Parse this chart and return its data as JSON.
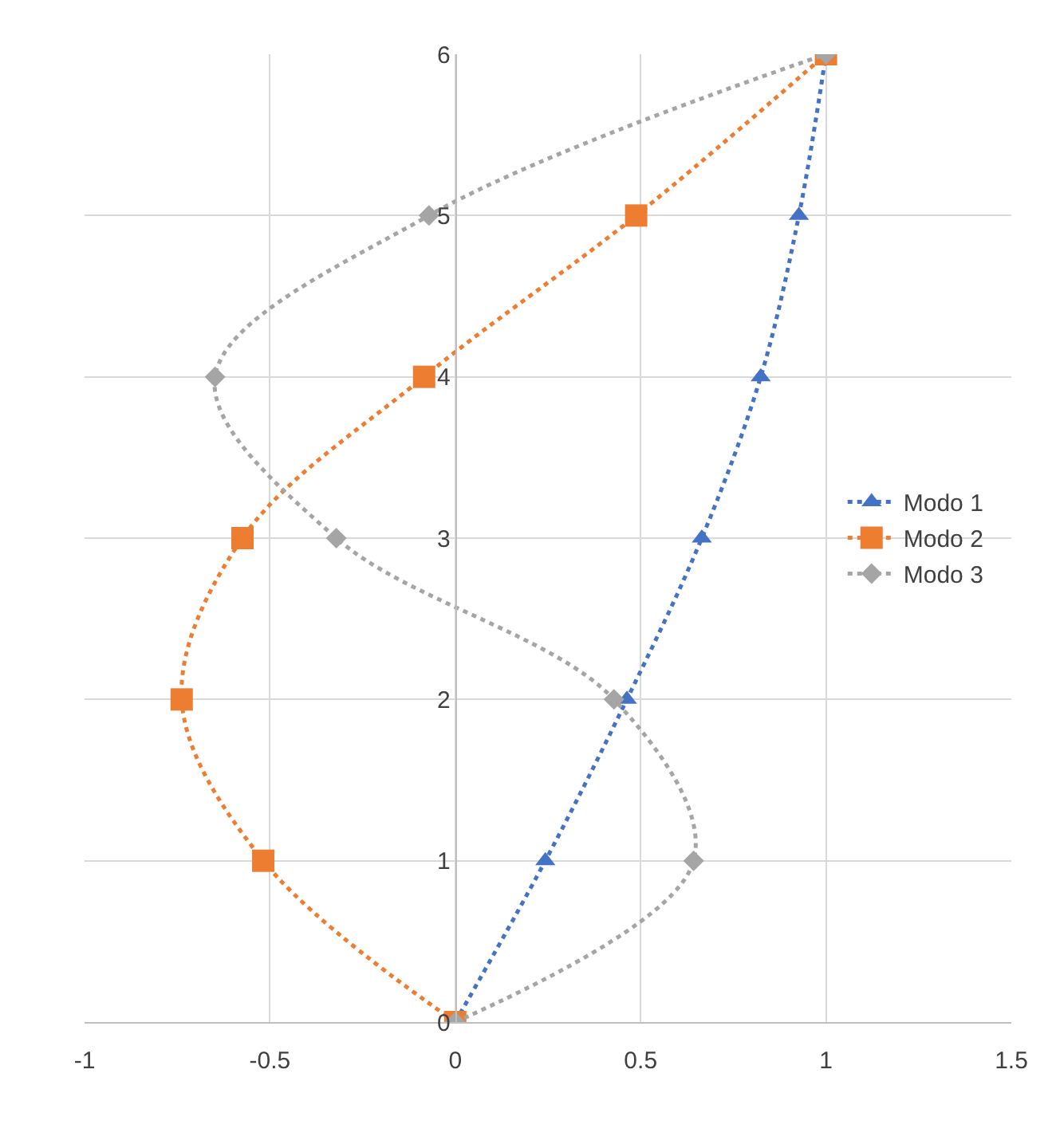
{
  "chart_data": {
    "type": "line",
    "series": [
      {
        "name": "Modo 1",
        "color": "#4472c4",
        "marker": "triangle",
        "x": [
          0,
          0.243,
          0.463,
          0.665,
          0.824,
          0.927,
          1
        ],
        "values": [
          0,
          1,
          2,
          3,
          4,
          5,
          6
        ]
      },
      {
        "name": "Modo 2",
        "color": "#ed7d31",
        "marker": "square",
        "x": [
          0,
          -0.518,
          -0.738,
          -0.574,
          -0.084,
          0.488,
          1
        ],
        "values": [
          0,
          1,
          2,
          3,
          4,
          5,
          6
        ]
      },
      {
        "name": "Modo 3",
        "color": "#a5a5a5",
        "marker": "diamond",
        "x": [
          0,
          0.643,
          0.428,
          -0.321,
          -0.648,
          -0.071,
          1
        ],
        "values": [
          0,
          1,
          2,
          3,
          4,
          5,
          6
        ]
      }
    ],
    "xlim": [
      -1,
      1.5
    ],
    "xticks": [
      -1,
      -0.5,
      0,
      0.5,
      1,
      1.5
    ],
    "ylim": [
      0,
      6
    ],
    "yticks": [
      0,
      1,
      2,
      3,
      4,
      5,
      6
    ],
    "grid": true,
    "legend": "right",
    "line_style": "dotted"
  }
}
